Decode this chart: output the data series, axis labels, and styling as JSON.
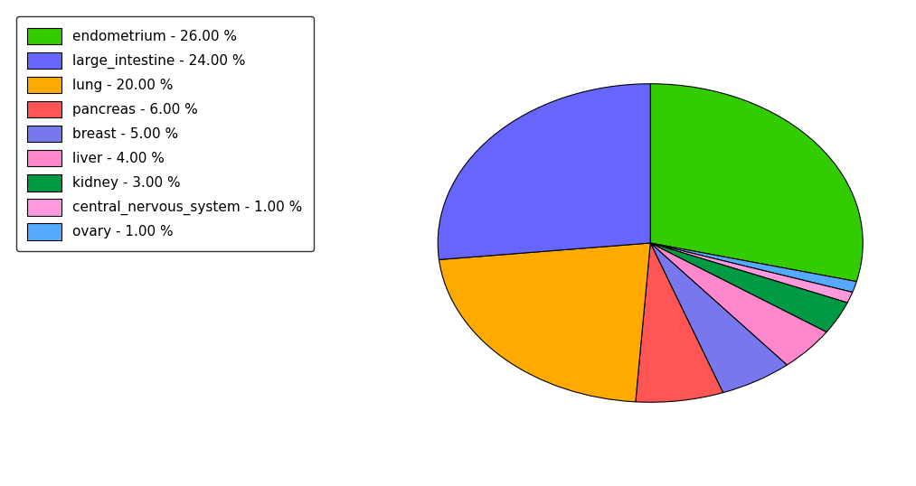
{
  "labels": [
    "endometrium",
    "ovary",
    "central_nervous_system",
    "kidney",
    "liver",
    "breast",
    "pancreas",
    "lung",
    "large_intestine"
  ],
  "values": [
    26.0,
    1.0,
    1.0,
    3.0,
    4.0,
    5.0,
    6.0,
    20.0,
    24.0
  ],
  "colors": [
    "#33cc00",
    "#55aaff",
    "#ff99dd",
    "#009944",
    "#ff88cc",
    "#7777ee",
    "#ff5555",
    "#ffaa00",
    "#6666ff"
  ],
  "legend_labels": [
    "endometrium - 26.00 %",
    "large_intestine - 24.00 %",
    "lung - 20.00 %",
    "pancreas - 6.00 %",
    "breast - 5.00 %",
    "liver - 4.00 %",
    "kidney - 3.00 %",
    "central_nervous_system - 1.00 %",
    "ovary - 1.00 %"
  ],
  "legend_colors": [
    "#33cc00",
    "#6666ff",
    "#ffaa00",
    "#ff5555",
    "#7777ee",
    "#ff88cc",
    "#009944",
    "#ff99dd",
    "#55aaff"
  ],
  "figsize": [
    10.13,
    5.38
  ],
  "dpi": 100,
  "startangle": 90,
  "ellipse_ratio": 0.75
}
